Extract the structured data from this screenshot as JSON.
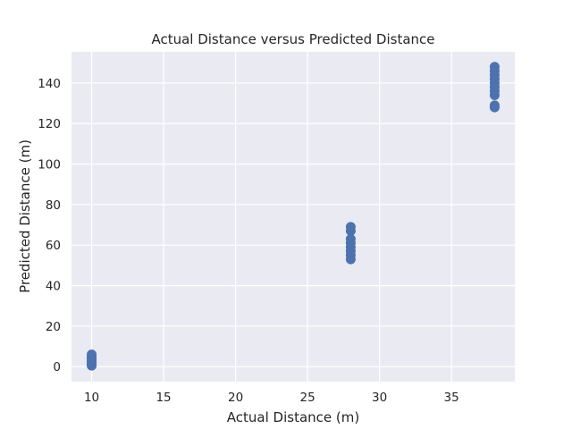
{
  "chart_data": {
    "type": "scatter",
    "title": "Actual Distance versus Predicted Distance",
    "xlabel": "Actual Distance (m)",
    "ylabel": "Predicted Distance (m)",
    "xlim": [
      8.6,
      39.4
    ],
    "ylim": [
      -7.4,
      155.4
    ],
    "x_ticks": [
      10,
      15,
      20,
      25,
      30,
      35
    ],
    "y_ticks": [
      0,
      20,
      40,
      60,
      80,
      100,
      120,
      140
    ],
    "grid": true,
    "legend": "none",
    "colors": {
      "background": "#EAEAF2",
      "grid": "#FFFFFF",
      "marker": "#4C72B0",
      "text": "#262626"
    },
    "points": [
      {
        "x": 10,
        "y": 0.5
      },
      {
        "x": 10,
        "y": 1.2
      },
      {
        "x": 10,
        "y": 2.0
      },
      {
        "x": 10,
        "y": 2.8
      },
      {
        "x": 10,
        "y": 3.5
      },
      {
        "x": 10,
        "y": 4.2
      },
      {
        "x": 10,
        "y": 5.0
      },
      {
        "x": 10,
        "y": 6.0
      },
      {
        "x": 28,
        "y": 53
      },
      {
        "x": 28,
        "y": 55
      },
      {
        "x": 28,
        "y": 57
      },
      {
        "x": 28,
        "y": 59
      },
      {
        "x": 28,
        "y": 61
      },
      {
        "x": 28,
        "y": 63
      },
      {
        "x": 28,
        "y": 67
      },
      {
        "x": 28,
        "y": 69
      },
      {
        "x": 38,
        "y": 128
      },
      {
        "x": 38,
        "y": 129
      },
      {
        "x": 38,
        "y": 134
      },
      {
        "x": 38,
        "y": 136
      },
      {
        "x": 38,
        "y": 138
      },
      {
        "x": 38,
        "y": 140
      },
      {
        "x": 38,
        "y": 142
      },
      {
        "x": 38,
        "y": 144
      },
      {
        "x": 38,
        "y": 146
      },
      {
        "x": 38,
        "y": 148
      }
    ]
  }
}
